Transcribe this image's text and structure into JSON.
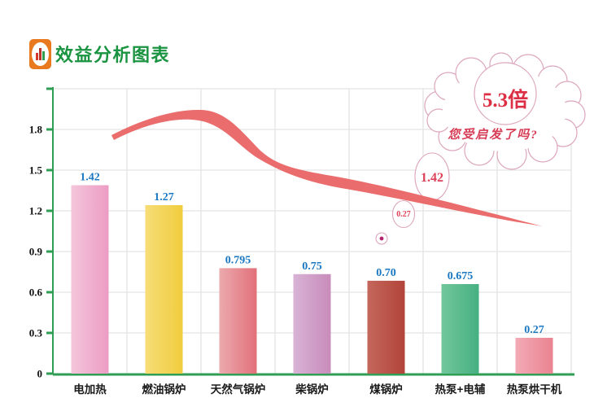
{
  "header": {
    "title": "效益分析图表",
    "logo_bg": "#e8791f"
  },
  "chart_data": {
    "type": "bar",
    "title": "效益分析图表",
    "categories": [
      "电加热",
      "燃油锅炉",
      "天然气锅炉",
      "柴锅炉",
      "煤锅炉",
      "热泵+电辅",
      "热泵烘干机"
    ],
    "values": [
      1.42,
      1.27,
      0.795,
      0.75,
      0.7,
      0.675,
      0.27
    ],
    "value_labels": [
      "1.42",
      "1.27",
      "0.795",
      "0.75",
      "0.70",
      "0.675",
      "0.27"
    ],
    "y_ticks": [
      "1.8",
      "1.5",
      "1.2",
      "0.9",
      "0.6",
      "0.3",
      "0"
    ],
    "ylim": [
      0,
      2.1
    ],
    "xlabel": "",
    "ylabel": "",
    "grid": true,
    "legend": "none",
    "bar_gradients": [
      {
        "from": "#f4c6db",
        "to": "#ec9cc3"
      },
      {
        "from": "#f6dd76",
        "to": "#f0cd3e"
      },
      {
        "from": "#ebaaae",
        "to": "#e27079"
      },
      {
        "from": "#d8b3d6",
        "to": "#c88bba"
      },
      {
        "from": "#c4675c",
        "to": "#b2443a"
      },
      {
        "from": "#72c79a",
        "to": "#45b082"
      },
      {
        "from": "#f3abb5",
        "to": "#ea8391"
      }
    ],
    "colors": {
      "axis_green": "#2f9e54",
      "grid_gray": "#e3e3e3",
      "value_label_blue": "#1a78c2",
      "category_label": "#1a1a1a",
      "tick_label": "#111111"
    }
  },
  "annotations": {
    "cloud_value": "5.3倍",
    "cloud_question": "您受启发了吗?",
    "bubble_value_large": "1.42",
    "bubble_value_small": "0.27",
    "colors": {
      "cloud_value_red": "#dc2f45",
      "question_red": "#d63c55",
      "bubble_text_red": "#dd4258",
      "outline_pink": "#dca6bd",
      "ribbon_red": "#ea6c6c",
      "dot_magenta": "#b5256d"
    }
  }
}
